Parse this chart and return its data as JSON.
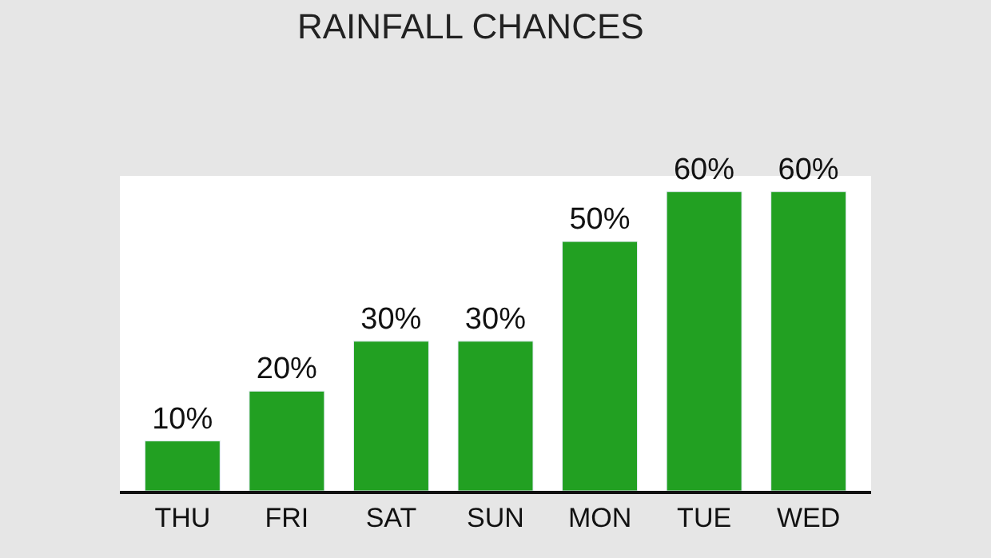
{
  "chart_data": {
    "type": "bar",
    "title": "RAINFALL CHANCES",
    "categories": [
      "THU",
      "FRI",
      "SAT",
      "SUN",
      "MON",
      "TUE",
      "WED"
    ],
    "values": [
      10,
      20,
      30,
      30,
      50,
      60,
      60
    ],
    "value_labels": [
      "10%",
      "20%",
      "30%",
      "30%",
      "50%",
      "60%",
      "60%"
    ],
    "color": "#22a022"
  }
}
